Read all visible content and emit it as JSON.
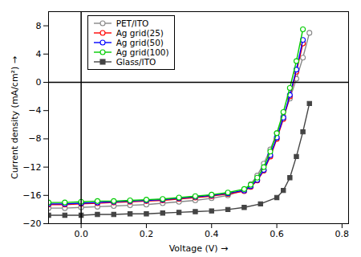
{
  "chart_data": {
    "type": "line",
    "xlabel": "Voltage (V)",
    "ylabel": "Current density (mA/cm²)",
    "xlim": [
      -0.1,
      0.82
    ],
    "ylim": [
      -20,
      10
    ],
    "xticks": [
      {
        "value": 0.0,
        "label": "0.0"
      },
      0.2,
      0.4,
      0.6,
      0.8
    ],
    "yticks": [
      8,
      4,
      0,
      -4,
      -8,
      -12,
      -16,
      -20
    ],
    "grid": false,
    "legend": "upper left",
    "hline": 0,
    "vline": 0,
    "series": [
      {
        "name": "PET/ITO",
        "color": "#888888",
        "marker": "circle",
        "x": [
          -0.1,
          -0.05,
          0.0,
          0.05,
          0.1,
          0.15,
          0.2,
          0.25,
          0.3,
          0.35,
          0.4,
          0.45,
          0.5,
          0.52,
          0.54,
          0.56,
          0.58,
          0.6,
          0.62,
          0.64,
          0.66,
          0.68,
          0.7
        ],
        "values": [
          -17.8,
          -17.8,
          -17.7,
          -17.6,
          -17.5,
          -17.4,
          -17.3,
          -17.1,
          -16.9,
          -16.7,
          -16.4,
          -16.0,
          -15.2,
          -14.4,
          -13.2,
          -11.5,
          -9.5,
          -7.2,
          -4.8,
          -2.3,
          0.5,
          3.5,
          7.0
        ]
      },
      {
        "name": "Ag grid(25)",
        "color": "#ff0000",
        "marker": "circle",
        "x": [
          -0.1,
          -0.05,
          0.0,
          0.05,
          0.1,
          0.15,
          0.2,
          0.25,
          0.3,
          0.35,
          0.4,
          0.45,
          0.5,
          0.52,
          0.54,
          0.56,
          0.58,
          0.6,
          0.62,
          0.64,
          0.66,
          0.68
        ],
        "values": [
          -17.3,
          -17.3,
          -17.2,
          -17.1,
          -17.0,
          -16.9,
          -16.8,
          -16.7,
          -16.5,
          -16.3,
          -16.1,
          -15.8,
          -15.4,
          -14.8,
          -13.9,
          -12.5,
          -10.5,
          -8.0,
          -5.2,
          -2.0,
          1.5,
          5.5
        ]
      },
      {
        "name": "Ag grid(50)",
        "color": "#0000ff",
        "marker": "circle",
        "x": [
          -0.1,
          -0.05,
          0.0,
          0.05,
          0.1,
          0.15,
          0.2,
          0.25,
          0.3,
          0.35,
          0.4,
          0.45,
          0.5,
          0.52,
          0.54,
          0.56,
          0.58,
          0.6,
          0.62,
          0.64,
          0.66,
          0.68
        ],
        "values": [
          -17.2,
          -17.2,
          -17.1,
          -17.0,
          -16.9,
          -16.8,
          -16.7,
          -16.6,
          -16.4,
          -16.2,
          -16.0,
          -15.7,
          -15.3,
          -14.7,
          -13.8,
          -12.4,
          -10.3,
          -7.8,
          -5.0,
          -1.8,
          1.8,
          6.0
        ]
      },
      {
        "name": "Ag grid(100)",
        "color": "#00cc00",
        "marker": "circle",
        "x": [
          -0.1,
          -0.05,
          0.0,
          0.05,
          0.1,
          0.15,
          0.2,
          0.25,
          0.3,
          0.35,
          0.4,
          0.45,
          0.5,
          0.52,
          0.54,
          0.56,
          0.58,
          0.6,
          0.62,
          0.64,
          0.66,
          0.68
        ],
        "values": [
          -17.0,
          -17.0,
          -16.9,
          -16.8,
          -16.8,
          -16.7,
          -16.6,
          -16.5,
          -16.3,
          -16.1,
          -15.9,
          -15.6,
          -15.1,
          -14.5,
          -13.5,
          -12.0,
          -9.8,
          -7.2,
          -4.2,
          -0.8,
          3.0,
          7.5
        ]
      },
      {
        "name": "Glass/ITO",
        "color": "#444444",
        "marker": "square",
        "x": [
          -0.1,
          -0.05,
          0.0,
          0.05,
          0.1,
          0.15,
          0.2,
          0.25,
          0.3,
          0.35,
          0.4,
          0.45,
          0.5,
          0.55,
          0.6,
          0.62,
          0.64,
          0.66,
          0.68,
          0.7
        ],
        "values": [
          -18.8,
          -18.8,
          -18.8,
          -18.7,
          -18.7,
          -18.6,
          -18.6,
          -18.5,
          -18.4,
          -18.3,
          -18.2,
          -18.0,
          -17.7,
          -17.2,
          -16.3,
          -15.3,
          -13.5,
          -10.5,
          -7.0,
          -3.0
        ]
      }
    ]
  }
}
